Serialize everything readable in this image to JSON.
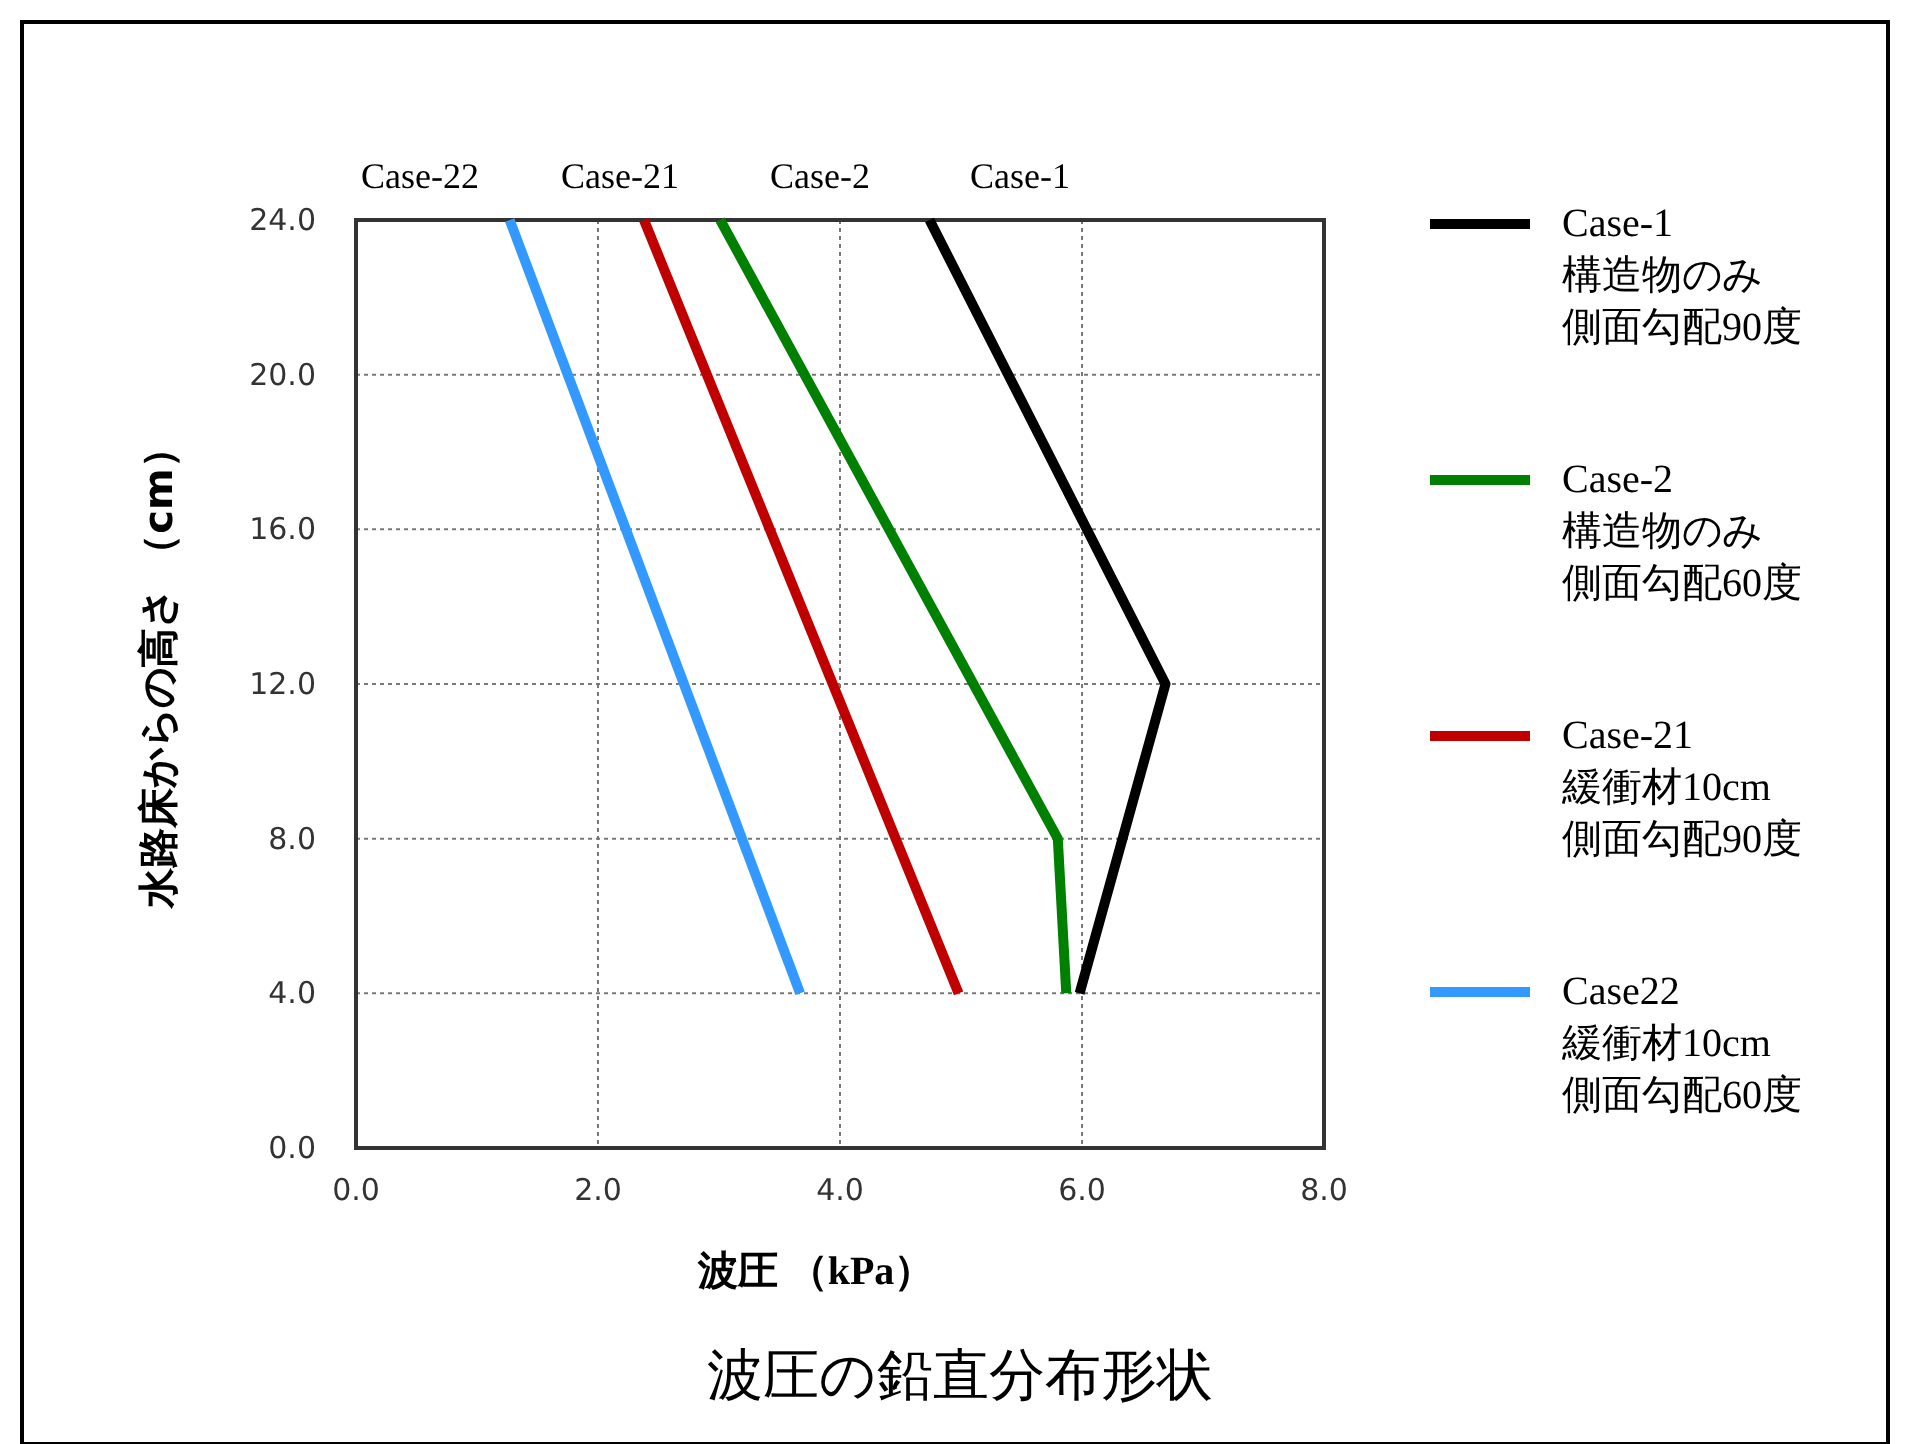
{
  "chart_data": {
    "type": "line",
    "title": "波圧の鉛直分布形状",
    "xlabel": "波圧 （kPa）",
    "ylabel": "水路床からの高さ （cm）",
    "xlim": [
      0,
      8
    ],
    "ylim": [
      0,
      24
    ],
    "xticks": [
      {
        "value": 0,
        "label": "0.0"
      },
      {
        "value": 2,
        "label": "2.0"
      },
      {
        "value": 4,
        "label": "4.0"
      },
      {
        "value": 6,
        "label": "6.0"
      },
      {
        "value": 8,
        "label": "8.0"
      }
    ],
    "yticks": [
      {
        "value": 0,
        "label": "0.0"
      },
      {
        "value": 4,
        "label": "4.0"
      },
      {
        "value": 8,
        "label": "8.0"
      },
      {
        "value": 12,
        "label": "12.0"
      },
      {
        "value": 16,
        "label": "16.0"
      },
      {
        "value": 20,
        "label": "20.0"
      },
      {
        "value": 24,
        "label": "24.0"
      }
    ],
    "grid": true,
    "legend": "right",
    "line_style": "solid",
    "marker": "none",
    "annotations": [
      "Case-22",
      "Case-21",
      "Case-2",
      "Case-1"
    ],
    "series": [
      {
        "name": "Case-1\n構造物のみ側面勾配90度",
        "color": "#000000",
        "x": [
          4.74,
          6.69,
          5.98
        ],
        "values": [
          24,
          12,
          4
        ]
      },
      {
        "name": "Case-2\n構造物のみ側面勾配60度",
        "color": "#008000",
        "x": [
          3.01,
          5.8,
          5.87
        ],
        "values": [
          24,
          8,
          4
        ]
      },
      {
        "name": "Case-21\n緩衝材10cm側面勾配90度",
        "color": "#c00000",
        "x": [
          2.38,
          4.98
        ],
        "values": [
          24,
          4
        ]
      },
      {
        "name": "Case22\n緩衝材10cm側面勾配60度",
        "color": "#3399ff",
        "x": [
          1.27,
          3.67
        ],
        "values": [
          24,
          4
        ]
      }
    ]
  }
}
